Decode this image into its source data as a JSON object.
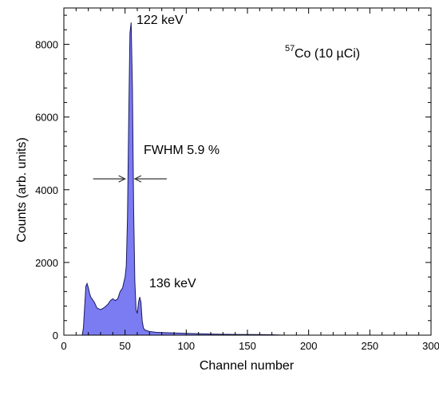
{
  "chart_data": {
    "type": "area",
    "xlabel": "Channel number",
    "ylabel": "Counts (arb. units)",
    "xlim": [
      0,
      300
    ],
    "ylim": [
      0,
      9000
    ],
    "x_ticks": [
      0,
      50,
      100,
      150,
      200,
      250,
      300
    ],
    "y_ticks": [
      0,
      2000,
      4000,
      6000,
      8000
    ],
    "x_tick_labels": [
      "0",
      "50",
      "100",
      "150",
      "200",
      "250",
      "300"
    ],
    "y_tick_labels": [
      "0",
      "2000",
      "4000",
      "6000",
      "8000"
    ],
    "grid": false,
    "fill_color": "#7b7cf2",
    "line_color": "#1a1a5e",
    "series": [
      {
        "x": [
          15,
          16,
          17,
          18,
          19,
          20,
          21,
          22,
          23,
          25,
          27,
          30,
          33,
          36,
          38,
          40,
          42,
          44,
          46,
          48,
          49,
          50,
          51,
          52,
          53,
          54,
          55,
          56,
          57,
          58,
          59,
          60,
          61,
          62,
          63,
          64,
          65,
          66,
          68,
          70,
          75,
          80,
          90,
          100,
          120,
          140,
          160,
          170,
          175,
          180,
          200,
          250,
          300
        ],
        "y": [
          0,
          200,
          800,
          1350,
          1420,
          1300,
          1150,
          1050,
          1000,
          900,
          750,
          700,
          760,
          850,
          950,
          1000,
          950,
          1000,
          1200,
          1300,
          1450,
          1600,
          1900,
          3200,
          6000,
          8300,
          8600,
          6800,
          3500,
          1500,
          700,
          600,
          900,
          1050,
          900,
          400,
          200,
          150,
          120,
          100,
          80,
          70,
          60,
          50,
          30,
          20,
          15,
          10,
          5,
          0,
          0,
          0,
          0
        ]
      }
    ],
    "annotations": {
      "peak1": "122 keV",
      "peak2": "136 keV",
      "fwhm": "FWHM 5.9 %",
      "source_sup": "57",
      "source_main": "Co (10 µCi)"
    },
    "fwhm_channels": [
      50,
      58
    ],
    "fwhm_level": 4300
  }
}
